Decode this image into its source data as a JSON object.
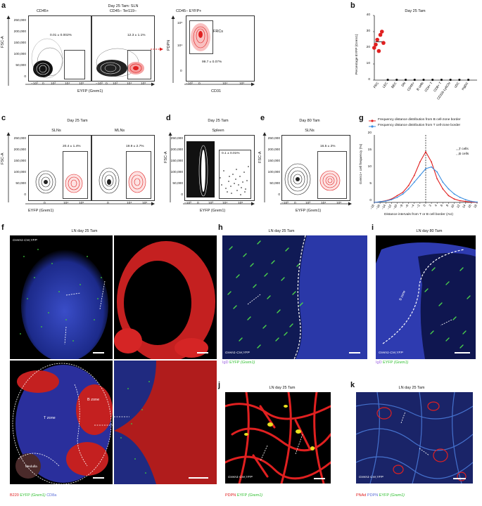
{
  "panels": {
    "a": {
      "letter": "a",
      "title1": "Day 25 Tam: SLN",
      "title2": "CD45− Ter119−",
      "p1_title": "CD45+",
      "p1_pct": "0.01 ± 0.002%",
      "p2_pct": "12.3 ± 1.1%",
      "p3_title": "CD45− EYFP+",
      "p3_frc": "FRCs",
      "p3_pct": "99.7 ± 0.07%",
      "ylabel": "FSC-A",
      "xlabel": "EYFP (Grem1)",
      "ylabel3": "PDPN",
      "xlabel3": "CD31",
      "yticks": [
        "250,000",
        "200,000",
        "150,000",
        "100,000",
        "50,000",
        "0"
      ],
      "xticks": [
        "−10³",
        "0",
        "10³",
        "10⁴",
        "10⁵"
      ],
      "yticks3": [
        "10⁵",
        "10⁴",
        "0"
      ],
      "xticks3": [
        "−10³",
        "0",
        "10⁴",
        "10⁵"
      ]
    },
    "b": {
      "letter": "b",
      "title": "Day 25 Tam",
      "ylabel": "Percentage EYFP (Grem1)",
      "yticks": [
        "40",
        "30",
        "20",
        "10",
        "0"
      ]
    },
    "c": {
      "letter": "c",
      "title": "Day 25 Tam",
      "sub1": "SLNs",
      "sub2": "MLNs",
      "pct1": "20.4 ± 1.4%",
      "pct2": "19.9 ± 2.7%",
      "ylabel": "FSC-A",
      "xlabel": "EYFP (Grem1)",
      "yticks": [
        "250,000",
        "200,000",
        "150,000",
        "100,000",
        "50,000",
        "0"
      ],
      "xticks": [
        "0",
        "10⁴",
        "10⁵"
      ]
    },
    "d": {
      "letter": "d",
      "title": "Day 25 Tam",
      "sub": "Spleen",
      "pct": "0.1 ± 0.01%",
      "ylabel": "FSC-A",
      "xlabel": "EYFP (Grem1)",
      "yticks": [
        "250,000",
        "200,000",
        "150,000",
        "100,000",
        "50,000",
        "0"
      ],
      "xticks": [
        "−10³",
        "0",
        "10³",
        "10⁴",
        "10⁵"
      ]
    },
    "e": {
      "letter": "e",
      "title": "Day 80 Tam",
      "sub": "SLNs",
      "pct": "16.5 ± 2%",
      "ylabel": "FSC-A",
      "xlabel": "EYFP (Grem1)",
      "yticks": [
        "250,000",
        "200,000",
        "150,000",
        "100,000",
        "50,000",
        "0"
      ],
      "xticks": [
        "−10³",
        "0",
        "10³",
        "10⁴",
        "10⁵"
      ]
    },
    "g": {
      "letter": "g",
      "legend1": "Frequency distance distribution from B cell-zone border",
      "legend2": "Frequency distance distribution from T cell-zone border",
      "inset1": "T cells",
      "inset2": "B cells",
      "ylabel": "Grem1+ cell frequency (%)",
      "xlabel": "Distance intervals from T or B cell border (AU)",
      "yticks": [
        "20",
        "15",
        "10",
        "5",
        "0"
      ]
    },
    "f": {
      "letter": "f",
      "title": "LN day 25 Tam",
      "genotype": "Grem1-Cre;YFP",
      "tzone": "T zone",
      "bzone": "B zone",
      "medulla": "Medulla",
      "stain_b220": "B220",
      "stain_eyfp": "EYFP",
      "stain_grem": "(Grem1)",
      "stain_cd8": "CD8a"
    },
    "h": {
      "letter": "h",
      "title": "LN day 25 Tam",
      "genotype": "Grem1-Cre;YFP",
      "stain_igd": "IgD",
      "stain_eyfp": "EYFP",
      "stain_grem": "(Grem1)"
    },
    "i": {
      "letter": "i",
      "title": "LN day 80 Tam",
      "genotype": "Grem1-Cre;YFP",
      "bzone": "B zone",
      "stain_igd": "IgD",
      "stain_eyfp": "EYFP",
      "stain_grem": "(Grem1)"
    },
    "j": {
      "letter": "j",
      "title": "LN day 25 Tam",
      "genotype": "Grem1-Cre;YFP",
      "stain_pdpn": "PDPN",
      "stain_eyfp": "EYFP",
      "stain_grem": "(Grem1)"
    },
    "k": {
      "letter": "k",
      "title": "LN day 25 Tam",
      "genotype": "Grem1-Cre;YFP",
      "stain_pnad": "PNAd",
      "stain_pdpn": "PDPN",
      "stain_eyfp": "EYFP",
      "stain_grem": "(Grem1)"
    }
  },
  "chart_data": [
    {
      "type": "scatter",
      "panel": "b",
      "title": "Day 25 Tam",
      "ylabel": "Percentage EYFP (Grem1)",
      "ylim": [
        0,
        40
      ],
      "categories": [
        "FRC",
        "LEC",
        "BEC",
        "DN",
        "CD45+",
        "B cells",
        "CD4+ T",
        "CD8+ T",
        "CD11b Ly6Chi",
        "cDC",
        "mgDC"
      ],
      "series": [
        {
          "values": [
            [
              20,
              22,
              25,
              18,
              28,
              30,
              23
            ],
            [
              0.2
            ],
            [
              0.2
            ],
            [
              0.2
            ],
            [
              0.2
            ],
            [
              0.2
            ],
            [
              0.2
            ],
            [
              0.2
            ],
            [
              0.2
            ],
            [
              0.2
            ],
            [
              0.2
            ]
          ]
        }
      ]
    },
    {
      "type": "line",
      "panel": "g",
      "ylabel": "Grem1+ cell frequency (%)",
      "xlabel": "Distance intervals from T or B cell border (AU)",
      "ylim": [
        0,
        20
      ],
      "x": [
        -18,
        -16,
        -14,
        -12,
        -10,
        -8,
        -6,
        -4,
        -2,
        0,
        2,
        4,
        6,
        8,
        10,
        12,
        14,
        16,
        18
      ],
      "x_ticks": [
        "−18",
        "−16",
        "−14",
        "−12",
        "−10",
        "−8",
        "−6",
        "−4",
        "−2",
        "0",
        "2",
        "4",
        "6",
        "8",
        "10",
        "12",
        "14",
        "16",
        "18"
      ],
      "series": [
        {
          "name": "Frequency distance distribution from B cell-zone border",
          "color": "#e02020",
          "values": [
            0,
            0.2,
            0.5,
            1,
            2,
            3,
            5,
            8,
            12,
            15,
            12,
            7,
            4,
            2,
            1,
            0.5,
            0.3,
            0.1,
            0
          ]
        },
        {
          "name": "Frequency distance distribution from T cell-zone border",
          "color": "#3b8ee0",
          "values": [
            0,
            0.2,
            0.4,
            0.8,
            1.5,
            2.5,
            4,
            6,
            8,
            10,
            10.5,
            9,
            6,
            4,
            2.5,
            1.5,
            0.8,
            0.3,
            0.1
          ]
        }
      ]
    }
  ],
  "colors": {
    "red": "#e02020",
    "green": "#2fbf2f",
    "blue": "#3b4fc0",
    "purple": "#9b5fe0"
  }
}
